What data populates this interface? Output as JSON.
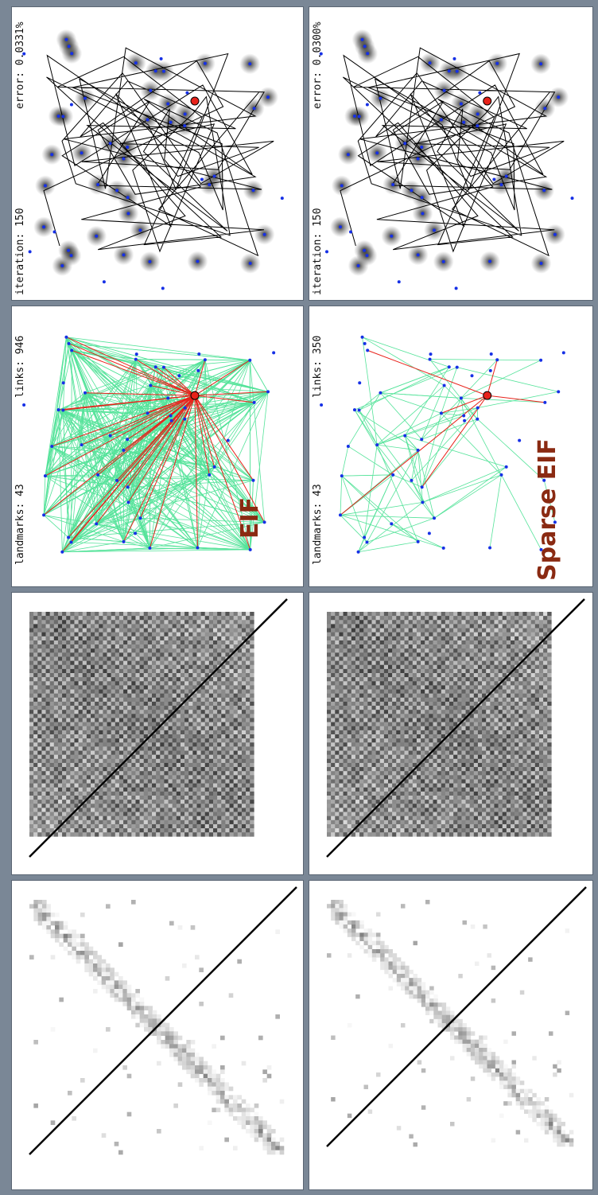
{
  "rows": [
    {
      "name": "eif",
      "title": "EIF",
      "iteration": "iteration: 150",
      "error": "error: 0.0331%",
      "landmarks": "landmarks: 43",
      "links": "links: 946"
    },
    {
      "name": "sparse-eif",
      "title": "Sparse EIF",
      "iteration": "iteration: 150",
      "error": "error: 0.0300%",
      "landmarks": "landmarks: 43",
      "links": "links: 350"
    }
  ],
  "colors": {
    "background": "#7a8796",
    "link_green": "#55e39a",
    "active_link_red": "#e8221a",
    "landmark_blue": "#1630e6",
    "robot_red": "#e8221a",
    "title_brown": "#8a2a12"
  }
}
